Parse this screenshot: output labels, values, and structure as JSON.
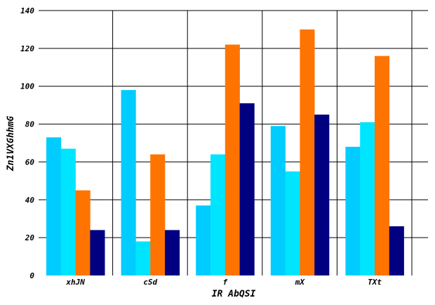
{
  "chart_data": {
    "type": "bar",
    "title": "",
    "xlabel": "IR AbQSI",
    "ylabel": "Zn1VXGhhmG",
    "categories": [
      "xhJN",
      "cSd",
      "f",
      "mX",
      "TXt"
    ],
    "series": [
      {
        "values": [
          73,
          98,
          37,
          79,
          68
        ],
        "color": "#00ccff"
      },
      {
        "values": [
          67,
          18,
          64,
          55,
          81
        ],
        "color": "#00e5ff"
      },
      {
        "values": [
          45,
          64,
          122,
          130,
          116
        ],
        "color": "#ff7400"
      },
      {
        "values": [
          24,
          24,
          91,
          85,
          26
        ],
        "color": "#000080"
      }
    ],
    "ylim": [
      0,
      140
    ],
    "yticks": [
      0,
      20,
      40,
      60,
      80,
      100,
      120,
      140
    ],
    "grid": true,
    "legend": "none"
  }
}
